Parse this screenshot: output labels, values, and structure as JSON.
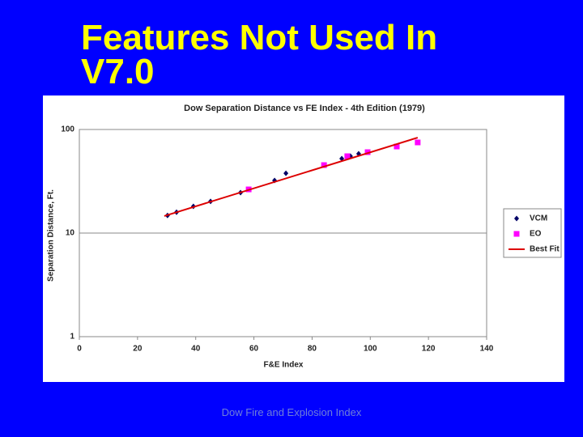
{
  "slide": {
    "title": "Features Not Used In V7.0",
    "footer": "Dow Fire and Explosion Index"
  },
  "chart_data": {
    "type": "scatter",
    "title": "Dow Separation Distance vs FE Index   -   4th Edition (1979)",
    "x_label": "F&E Index",
    "y_label": "Separation Distance, Ft.",
    "xlim": [
      0,
      140
    ],
    "xticks": [
      0,
      20,
      40,
      60,
      80,
      100,
      120,
      140
    ],
    "ylim": [
      1,
      100
    ],
    "yticks": [
      1,
      10,
      100
    ],
    "y_log": true,
    "grid": true,
    "legend": "right",
    "series": [
      {
        "name": "VCM",
        "type": "scatter",
        "marker": "diamond",
        "color": "#000066",
        "x": [
          30.3,
          33.4,
          39.2,
          45.1,
          55.4,
          67.1,
          71,
          90.2,
          93.2,
          96
        ],
        "values": [
          14.8,
          15.9,
          18.1,
          20.2,
          24.6,
          32.2,
          37.8,
          52.3,
          55.2,
          58.3
        ]
      },
      {
        "name": "EO",
        "type": "scatter",
        "marker": "square",
        "color": "#ff00ff",
        "x": [
          58.2,
          84.1,
          92.1,
          99.1,
          109.1,
          116.3
        ],
        "values": [
          26.4,
          45.3,
          55.2,
          60.4,
          68.5,
          75
        ]
      },
      {
        "name": "Best Fit",
        "type": "line",
        "marker": "line",
        "color": "#dd0000",
        "x": [
          29.2,
          116.3
        ],
        "values": [
          14.6,
          83.5
        ]
      }
    ]
  }
}
